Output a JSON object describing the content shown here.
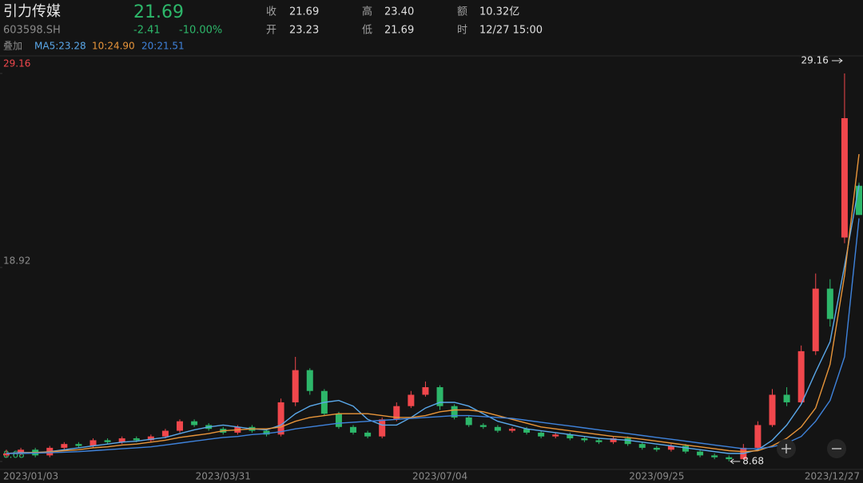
{
  "header": {
    "name": "引力传媒",
    "code": "603598.SH",
    "price": "21.69",
    "change": "-2.41",
    "change_pct": "-10.00%",
    "stats": [
      [
        "收",
        "21.69"
      ],
      [
        "开",
        "23.23"
      ],
      [
        "高",
        "23.40"
      ],
      [
        "低",
        "21.69"
      ],
      [
        "额",
        "10.32亿"
      ],
      [
        "时",
        "12/27 15:00"
      ]
    ],
    "overlay": "叠加"
  },
  "chart_data": {
    "type": "candlestick",
    "categories": [
      "2023/01/03",
      null,
      null,
      null,
      null,
      null,
      null,
      null,
      null,
      null,
      null,
      null,
      null,
      null,
      null,
      "2023/03/31",
      null,
      null,
      null,
      null,
      null,
      null,
      null,
      null,
      null,
      null,
      null,
      null,
      null,
      null,
      "2023/07/04",
      null,
      null,
      null,
      null,
      null,
      null,
      null,
      null,
      null,
      null,
      null,
      null,
      null,
      null,
      "2023/09/25",
      null,
      null,
      null,
      null,
      null,
      null,
      null,
      null,
      null,
      null,
      null,
      null,
      null,
      "2023/12/27"
    ],
    "open": [
      9.0,
      9.1,
      9.3,
      9.0,
      9.4,
      9.6,
      9.5,
      9.8,
      9.7,
      9.9,
      9.8,
      10.0,
      10.3,
      10.8,
      10.6,
      10.4,
      10.2,
      10.5,
      10.3,
      10.1,
      11.8,
      13.5,
      12.4,
      11.2,
      10.5,
      10.2,
      10.0,
      10.9,
      11.6,
      12.2,
      12.6,
      11.6,
      11.0,
      10.6,
      10.5,
      10.3,
      10.4,
      10.2,
      10.0,
      10.1,
      9.9,
      9.8,
      9.7,
      9.9,
      9.6,
      9.4,
      9.3,
      9.5,
      9.2,
      9.0,
      8.9,
      8.8,
      9.4,
      10.6,
      12.2,
      11.8,
      14.5,
      17.8,
      20.5,
      23.23
    ],
    "high": [
      9.3,
      9.4,
      9.4,
      9.5,
      9.7,
      9.7,
      9.9,
      9.9,
      10.0,
      10.0,
      10.1,
      10.4,
      10.9,
      10.9,
      10.7,
      10.5,
      10.6,
      10.6,
      10.4,
      12.0,
      14.2,
      13.6,
      12.5,
      11.3,
      10.6,
      10.3,
      11.0,
      11.8,
      12.4,
      12.9,
      12.7,
      11.7,
      11.1,
      10.7,
      10.6,
      10.5,
      10.5,
      10.3,
      10.2,
      10.2,
      10.0,
      9.9,
      10.0,
      10.0,
      9.7,
      9.5,
      9.6,
      9.6,
      9.3,
      9.1,
      9.0,
      9.6,
      10.8,
      12.5,
      12.6,
      14.8,
      18.6,
      18.3,
      29.16,
      23.4
    ],
    "low": [
      8.9,
      9.0,
      8.9,
      8.9,
      9.3,
      9.4,
      9.4,
      9.6,
      9.6,
      9.7,
      9.7,
      9.9,
      10.2,
      10.5,
      10.3,
      10.1,
      10.1,
      10.2,
      10.0,
      10.0,
      11.6,
      12.2,
      11.1,
      10.4,
      10.1,
      9.9,
      9.9,
      10.8,
      11.5,
      12.1,
      11.4,
      10.9,
      10.5,
      10.4,
      10.2,
      10.2,
      10.1,
      9.9,
      9.9,
      9.8,
      9.7,
      9.6,
      9.6,
      9.5,
      9.3,
      9.2,
      9.2,
      9.1,
      8.9,
      8.8,
      8.68,
      8.8,
      9.3,
      10.5,
      11.6,
      11.7,
      14.3,
      15.8,
      20.2,
      21.69
    ],
    "close": [
      9.1,
      9.3,
      9.0,
      9.4,
      9.6,
      9.5,
      9.8,
      9.7,
      9.9,
      9.8,
      10.0,
      10.3,
      10.8,
      10.6,
      10.4,
      10.2,
      10.5,
      10.3,
      10.1,
      11.8,
      13.5,
      12.4,
      11.2,
      10.5,
      10.2,
      10.0,
      10.9,
      11.6,
      12.2,
      12.6,
      11.6,
      11.0,
      10.6,
      10.5,
      10.3,
      10.4,
      10.2,
      10.0,
      10.1,
      9.9,
      9.8,
      9.7,
      9.9,
      9.6,
      9.4,
      9.3,
      9.5,
      9.2,
      9.0,
      8.9,
      8.8,
      9.4,
      10.6,
      12.2,
      11.8,
      14.5,
      17.8,
      16.2,
      26.8,
      21.69
    ],
    "up_color": "#f0474c",
    "down_color": "#2db76a",
    "series": [
      {
        "name": "MA5:23.28",
        "color": "#5aa8ea",
        "values": [
          9.1,
          9.15,
          9.15,
          9.2,
          9.3,
          9.4,
          9.5,
          9.6,
          9.7,
          9.75,
          9.85,
          9.95,
          10.15,
          10.35,
          10.5,
          10.6,
          10.5,
          10.4,
          10.35,
          10.6,
          11.2,
          11.6,
          11.8,
          11.9,
          11.6,
          10.9,
          10.6,
          10.6,
          11.0,
          11.5,
          11.8,
          11.8,
          11.6,
          11.2,
          10.8,
          10.6,
          10.4,
          10.3,
          10.2,
          10.1,
          10.0,
          9.9,
          9.85,
          9.8,
          9.7,
          9.6,
          9.5,
          9.4,
          9.3,
          9.2,
          9.1,
          9.1,
          9.3,
          9.8,
          10.6,
          11.7,
          13.4,
          15.0,
          19.0,
          23.28
        ]
      },
      {
        "name": "10:24.90",
        "color": "#e8953a",
        "values": [
          9.1,
          9.12,
          9.15,
          9.18,
          9.25,
          9.3,
          9.4,
          9.45,
          9.55,
          9.6,
          9.7,
          9.8,
          9.95,
          10.05,
          10.15,
          10.3,
          10.35,
          10.4,
          10.4,
          10.5,
          10.8,
          11.0,
          11.1,
          11.2,
          11.2,
          11.2,
          11.1,
          11.0,
          11.0,
          11.1,
          11.3,
          11.4,
          11.4,
          11.3,
          11.1,
          10.9,
          10.7,
          10.5,
          10.4,
          10.3,
          10.2,
          10.1,
          10.0,
          9.95,
          9.85,
          9.75,
          9.65,
          9.55,
          9.45,
          9.35,
          9.25,
          9.2,
          9.25,
          9.5,
          9.9,
          10.5,
          11.5,
          13.8,
          18.5,
          24.9
        ]
      },
      {
        "name": "20:21.51",
        "color": "#3f83dc",
        "values": [
          9.1,
          9.1,
          9.12,
          9.14,
          9.17,
          9.2,
          9.25,
          9.3,
          9.35,
          9.4,
          9.45,
          9.55,
          9.65,
          9.75,
          9.85,
          9.95,
          10.0,
          10.1,
          10.15,
          10.25,
          10.4,
          10.5,
          10.6,
          10.7,
          10.75,
          10.8,
          10.85,
          10.9,
          10.95,
          11.0,
          11.05,
          11.1,
          11.1,
          11.05,
          11.0,
          10.95,
          10.85,
          10.75,
          10.65,
          10.55,
          10.45,
          10.35,
          10.25,
          10.15,
          10.05,
          9.95,
          9.85,
          9.75,
          9.65,
          9.55,
          9.45,
          9.35,
          9.35,
          9.45,
          9.65,
          10.0,
          10.8,
          11.9,
          14.2,
          21.51
        ]
      }
    ],
    "ylim": [
      8.68,
      29.16
    ],
    "yticks": [
      29.16,
      18.92,
      8.68
    ]
  }
}
